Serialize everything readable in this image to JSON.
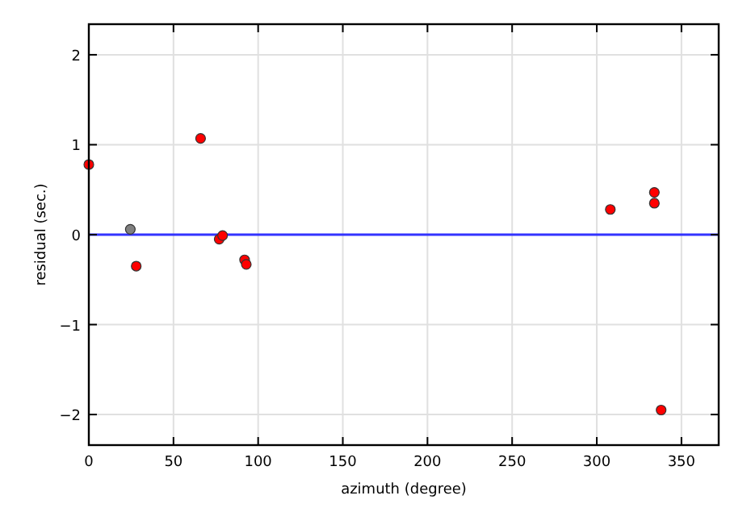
{
  "chart_data": {
    "type": "scatter",
    "xlabel": "azimuth (degree)",
    "ylabel": "residual (sec.)",
    "xlim": [
      0,
      372
    ],
    "ylim": [
      -2.34,
      2.34
    ],
    "xticks": [
      0,
      50,
      100,
      150,
      200,
      250,
      300,
      350
    ],
    "yticks": [
      {
        "value": -2,
        "label": "−2"
      },
      {
        "value": -1,
        "label": "−1"
      },
      0,
      1,
      2
    ],
    "grid": true,
    "marker": "circle",
    "series": [
      {
        "color": "#ff0000",
        "x": [
          0,
          28,
          66,
          77,
          79,
          92,
          93,
          308,
          334,
          334,
          338
        ],
        "values": [
          0.78,
          -0.35,
          1.07,
          -0.05,
          -0.01,
          -0.28,
          -0.33,
          0.28,
          0.47,
          0.35,
          -1.95
        ]
      },
      {
        "color": "#808080",
        "x": [
          24.5
        ],
        "values": [
          0.06
        ]
      }
    ],
    "ref_lines": [
      {
        "axis": "y",
        "value": 0,
        "color": "#3333ff"
      }
    ]
  }
}
